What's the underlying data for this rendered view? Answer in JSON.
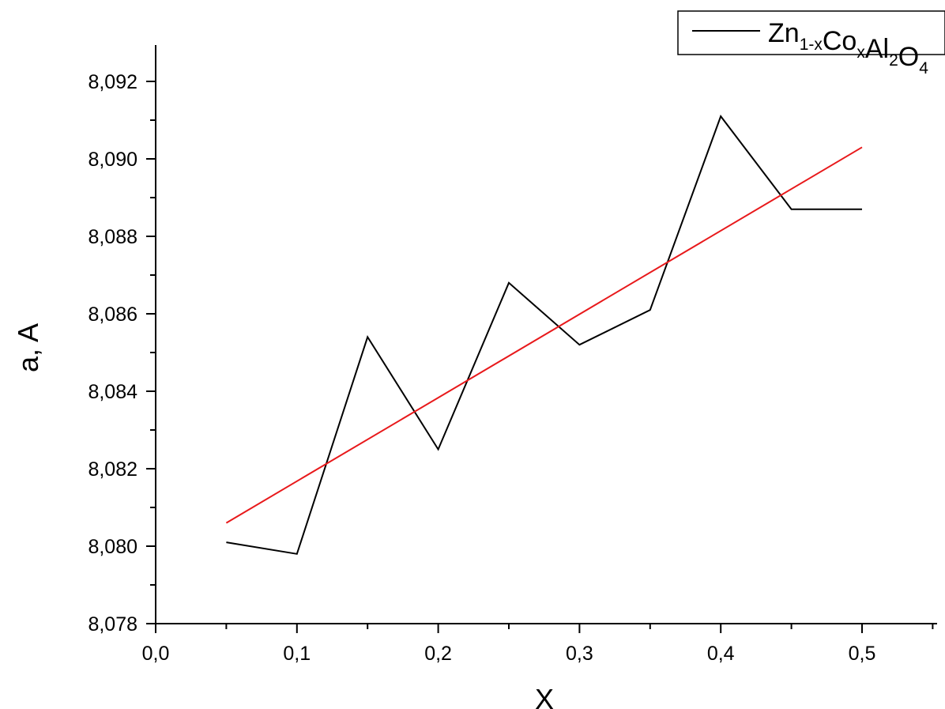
{
  "chart_data": {
    "type": "line",
    "title": "",
    "xlabel": "X",
    "ylabel": "a, A",
    "xlim": [
      0.0,
      0.55
    ],
    "ylim": [
      8.078,
      8.093
    ],
    "x_ticks": [
      "0,0",
      "0,1",
      "0,2",
      "0,3",
      "0,4",
      "0,5"
    ],
    "y_ticks": [
      "8,078",
      "8,080",
      "8,082",
      "8,084",
      "8,086",
      "8,088",
      "8,090",
      "8,092"
    ],
    "grid": false,
    "legend": {
      "placement": "top-right",
      "parts": [
        {
          "text": "Zn",
          "sub": "1-x"
        },
        {
          "text": "Co",
          "sub": "x"
        },
        {
          "text": "Al",
          "sub": "2"
        },
        {
          "text": "O",
          "sub": "4"
        }
      ]
    },
    "series": [
      {
        "name": "Zn1-xCoxAl2O4",
        "color": "#000000",
        "x": [
          0.05,
          0.1,
          0.15,
          0.2,
          0.25,
          0.3,
          0.35,
          0.4,
          0.45,
          0.5
        ],
        "y": [
          8.0801,
          8.0798,
          8.0854,
          8.0825,
          8.0868,
          8.0852,
          8.0861,
          8.0911,
          8.0887,
          8.0887
        ]
      },
      {
        "color": "#e8191b",
        "x": [
          0.05,
          0.5
        ],
        "y": [
          8.0806,
          8.0903
        ]
      }
    ]
  }
}
